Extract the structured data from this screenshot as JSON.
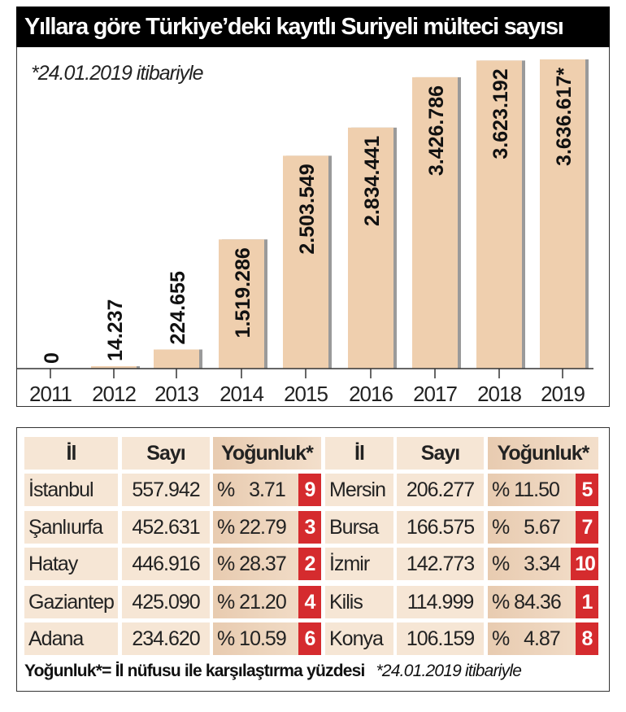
{
  "title": "Yıllara göre Türkiye’deki kayıtlı Suriyeli mülteci sayısı",
  "chart_note": "*24.01.2019 itibariyle",
  "chart_data": {
    "type": "bar",
    "title": "Yıllara göre Türkiye’deki kayıtlı Suriyeli mülteci sayısı",
    "categories": [
      "2011",
      "2012",
      "2013",
      "2014",
      "2015",
      "2016",
      "2017",
      "2018",
      "2019"
    ],
    "values": [
      0,
      14237,
      224655,
      1519286,
      2503549,
      2834441,
      3426786,
      3623192,
      3636617
    ],
    "labels": [
      "0",
      "14.237",
      "224.655",
      "1.519.286",
      "2.503.549",
      "2.834.441",
      "3.426.786",
      "3.623.192",
      "3.636.617*"
    ],
    "xlabel": "",
    "ylabel": "",
    "ylim": [
      0,
      3636617
    ],
    "colors": {
      "bar": "#efcfae",
      "shadow": "#9a9a9a"
    }
  },
  "table": {
    "headers": [
      "İl",
      "Sayı",
      "Yoğunluk*"
    ],
    "left": [
      {
        "il": "İstanbul",
        "sayi": "557.942",
        "pct": "%   3.71",
        "rank": "9"
      },
      {
        "il": "Şanlıurfa",
        "sayi": "452.631",
        "pct": "% 22.79",
        "rank": "3"
      },
      {
        "il": "Hatay",
        "sayi": "446.916",
        "pct": "% 28.37",
        "rank": "2"
      },
      {
        "il": "Gaziantep",
        "sayi": "425.090",
        "pct": "% 21.20",
        "rank": "4"
      },
      {
        "il": "Adana",
        "sayi": "234.620",
        "pct": "% 10.59",
        "rank": "6"
      }
    ],
    "right": [
      {
        "il": "Mersin",
        "sayi": "206.277",
        "pct": "% 11.50",
        "rank": "5"
      },
      {
        "il": "Bursa",
        "sayi": "166.575",
        "pct": "%   5.67",
        "rank": "7"
      },
      {
        "il": "İzmir",
        "sayi": "142.773",
        "pct": "%   3.34",
        "rank": "10"
      },
      {
        "il": "Kilis",
        "sayi": "114.999",
        "pct": "% 84.36",
        "rank": "1"
      },
      {
        "il": "Konya",
        "sayi": "106.159",
        "pct": "%   4.87",
        "rank": "8"
      }
    ],
    "footer_definition": "Yoğunluk*= İl nüfusu ile karşılaştırma yüzdesi",
    "footer_note": "*24.01.2019 itibariyle",
    "colors": {
      "badge": "#d52b2e",
      "cell": "#f6e6d5"
    }
  }
}
